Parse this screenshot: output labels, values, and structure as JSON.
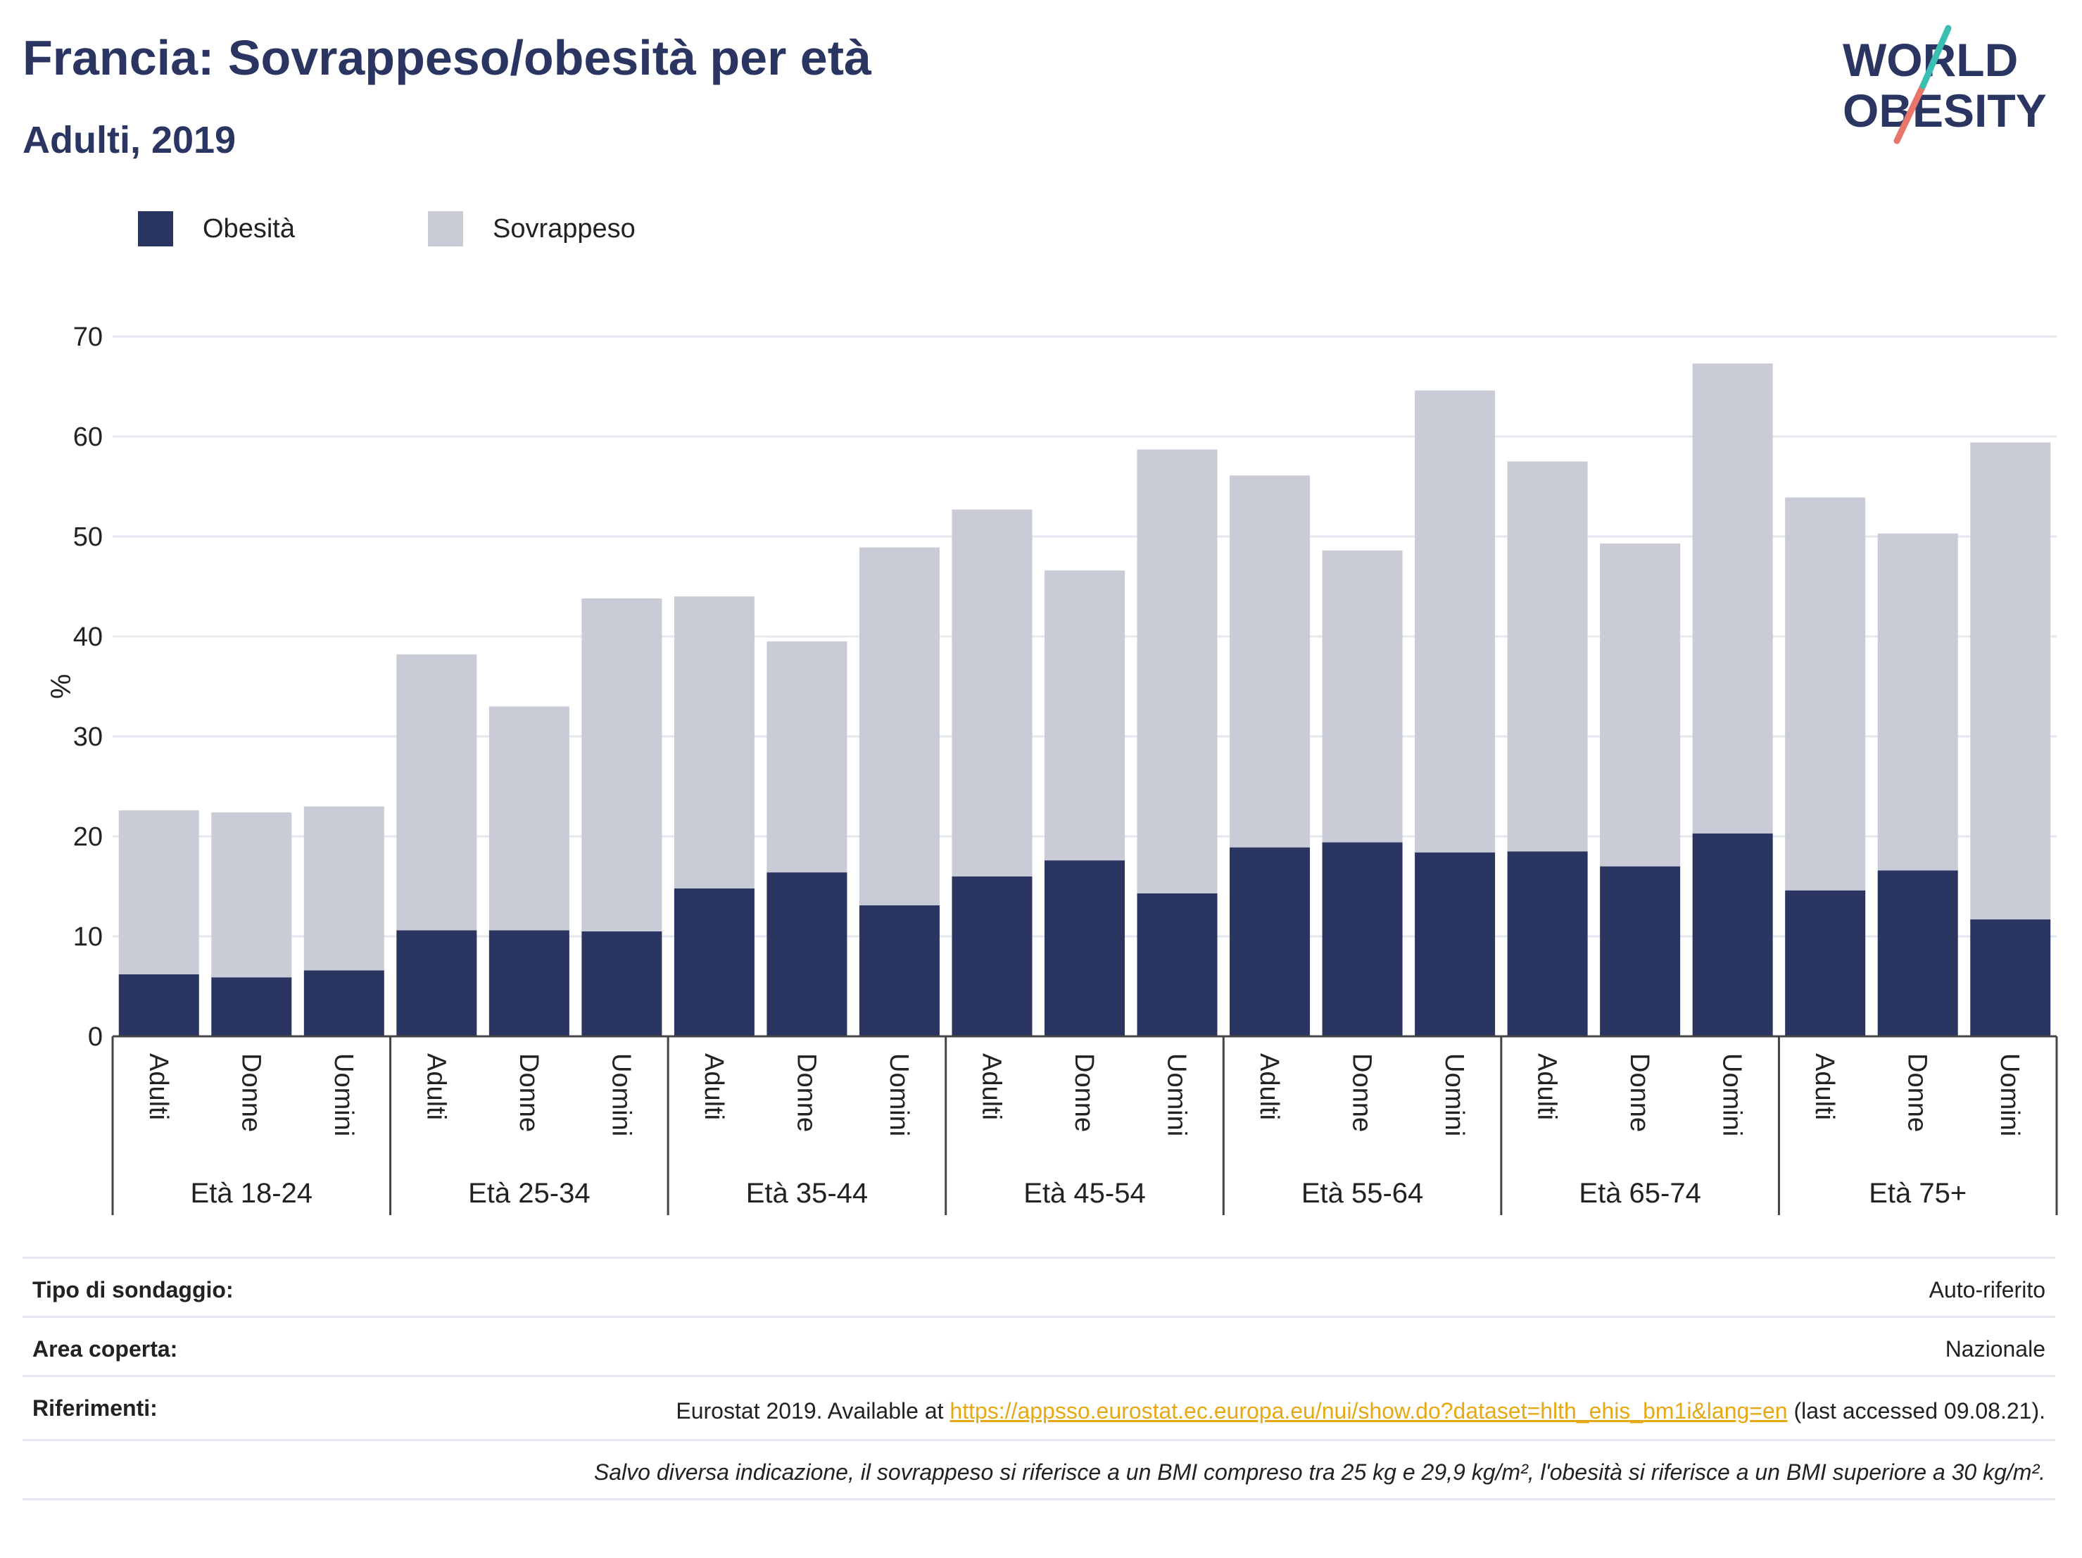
{
  "title": "Francia: Sovrappeso/obesità per età",
  "subtitle": "Adulti, 2019",
  "logo": {
    "line1": "WORLD",
    "line2": "OBESITY"
  },
  "legend": [
    {
      "label": "Obesità",
      "color": "#2a3562"
    },
    {
      "label": "Sovrappeso",
      "color": "#c9cbd7"
    }
  ],
  "chart_data": {
    "type": "bar",
    "stacked": true,
    "ylabel": "%",
    "ylim": [
      0,
      70
    ],
    "yticks": [
      0,
      10,
      20,
      30,
      40,
      50,
      60,
      70
    ],
    "grid": true,
    "legend_position": "top-left",
    "groups": [
      "Età 18-24",
      "Età 25-34",
      "Età 35-44",
      "Età 45-54",
      "Età 55-64",
      "Età 65-74",
      "Età 75+"
    ],
    "subcategories": [
      "Adulti",
      "Donne",
      "Uomini"
    ],
    "series": [
      {
        "name": "Obesità",
        "color": "#2a3562",
        "values": [
          6.2,
          5.9,
          6.6,
          10.6,
          10.6,
          10.5,
          14.8,
          16.4,
          13.1,
          16.0,
          17.6,
          14.3,
          18.9,
          19.4,
          18.4,
          18.5,
          17.0,
          20.3,
          14.6,
          16.6,
          11.7
        ]
      },
      {
        "name": "Sovrappeso",
        "color": "#c9cbd7",
        "values": [
          16.4,
          16.5,
          16.4,
          27.6,
          22.4,
          33.3,
          29.2,
          23.1,
          35.8,
          36.7,
          29.0,
          44.4,
          37.2,
          29.2,
          46.2,
          39.0,
          32.3,
          47.0,
          39.3,
          33.7,
          47.7
        ]
      }
    ]
  },
  "meta": {
    "survey_label": "Tipo di sondaggio:",
    "survey_value": "Auto-riferito",
    "area_label": "Area coperta:",
    "area_value": "Nazionale",
    "ref_label": "Riferimenti:",
    "ref_prefix": "Eurostat 2019. Available at ",
    "ref_link": "https://appsso.eurostat.ec.europa.eu/nui/show.do?dataset=hlth_ehis_bm1i&lang=en",
    "ref_suffix": " (last accessed 09.08.21).",
    "note": "Salvo diversa indicazione, il sovrappeso si riferisce a un BMI compreso tra 25 kg e 29,9 kg/m², l'obesità si riferisce a un BMI superiore a 30 kg/m²."
  }
}
